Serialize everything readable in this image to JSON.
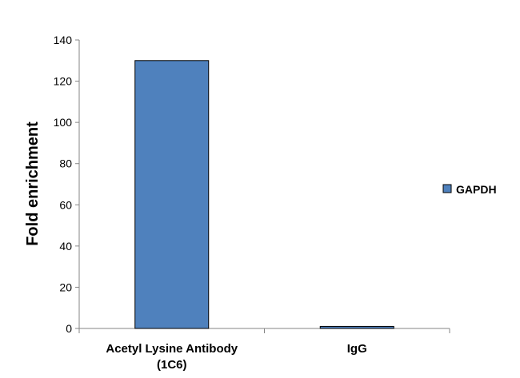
{
  "chart_data": {
    "type": "bar",
    "categories": [
      "Acetyl Lysine Antibody (1C6)",
      "IgG"
    ],
    "category_lines": [
      [
        "Acetyl Lysine Antibody",
        "(1C6)"
      ],
      [
        "IgG"
      ]
    ],
    "series": [
      {
        "name": "GAPDH",
        "values": [
          130,
          1
        ],
        "color": "#4f81bd"
      }
    ],
    "xlabel": "",
    "ylabel": "Fold enrichment",
    "ylim": [
      0,
      140
    ],
    "yticks": [
      0,
      20,
      40,
      60,
      80,
      100,
      120,
      140
    ],
    "grid": false,
    "legend": {
      "position": "right",
      "entries": [
        "GAPDH"
      ]
    }
  }
}
